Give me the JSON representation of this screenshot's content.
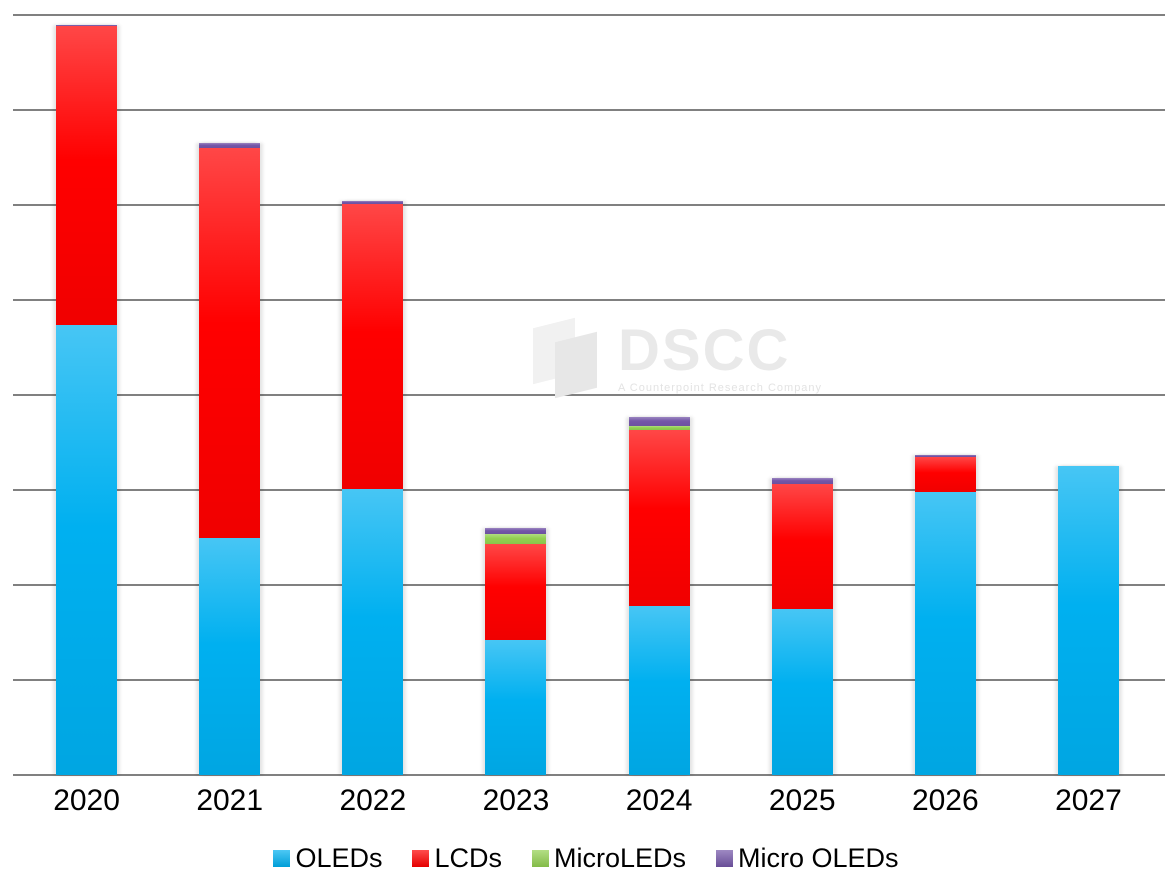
{
  "page": {
    "background": "#ffffff"
  },
  "watermark": {
    "text": "DSCC",
    "subtext": "A Counterpoint Research Company",
    "logo": "dscc-parallelogram-logo"
  },
  "chart_data": {
    "type": "bar",
    "stacked": true,
    "title": "",
    "xlabel": "",
    "ylabel": "",
    "y_axis_tick_labels_visible": false,
    "value_units": "gridline units (y-axis unlabeled; 1 unit = one gridline interval)",
    "ylim": [
      0,
      8
    ],
    "grid": true,
    "grid_color": "#808080",
    "legend_position": "bottom",
    "categories": [
      "2020",
      "2021",
      "2022",
      "2023",
      "2024",
      "2025",
      "2026",
      "2027"
    ],
    "series": [
      {
        "name": "OLEDs",
        "color": "#00B0F0",
        "values": [
          4.74,
          2.49,
          3.01,
          1.42,
          1.78,
          1.75,
          2.98,
          3.25
        ]
      },
      {
        "name": "LCDs",
        "color": "#FF0000",
        "values": [
          3.14,
          4.11,
          3.0,
          1.01,
          1.85,
          1.31,
          0.37,
          0
        ]
      },
      {
        "name": "MicroLEDs",
        "color": "#92D050",
        "values": [
          0,
          0,
          0,
          0.11,
          0.04,
          0,
          0,
          0
        ]
      },
      {
        "name": "Micro OLEDs",
        "color": "#7456A8",
        "values": [
          0.02,
          0.05,
          0.03,
          0.06,
          0.1,
          0.07,
          0.02,
          0
        ]
      }
    ]
  }
}
